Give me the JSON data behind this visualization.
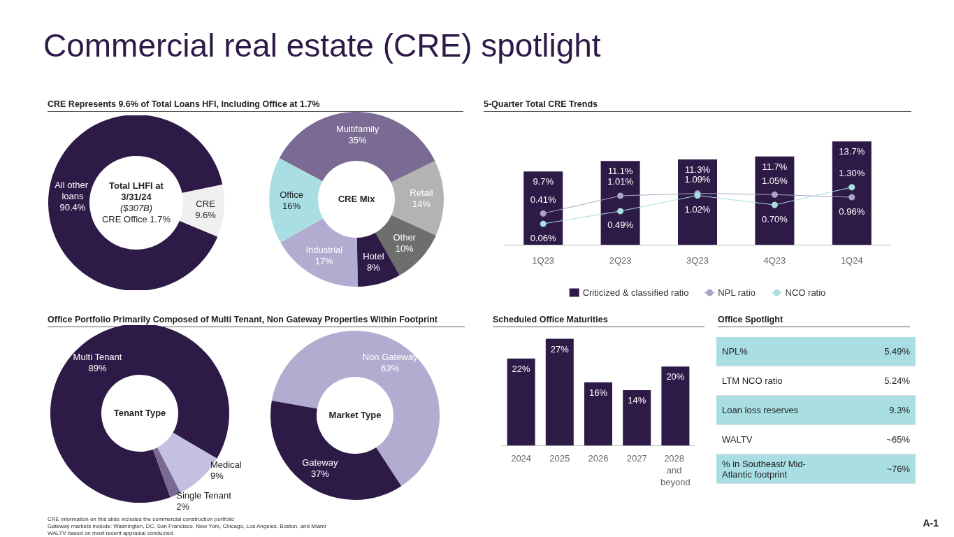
{
  "chart_data": [
    {
      "type": "donut",
      "title": "Commercial real estate (CRE) spotlight",
      "subtitle": "CRE Represents 9.6% of Total Loans HFI, Including Office at 1.7%",
      "categories": [
        "All other loans",
        "CRE"
      ],
      "values": [
        90.4,
        9.6
      ],
      "value_labels": [
        "90.4%",
        "9.6%"
      ],
      "colors": [
        "#2e1a47",
        "#f0f0f0"
      ],
      "annotations": [
        "Total LHFI at 3/31/24",
        "($307B)",
        "CRE Office 1.7%"
      ]
    },
    {
      "type": "donut",
      "categories": [
        "Multifamily",
        "Retail",
        "Other",
        "Hotel",
        "Industrial",
        "Office"
      ],
      "values": [
        35,
        14,
        10,
        8,
        17,
        16
      ],
      "value_labels": [
        "35%",
        "14%",
        "10%",
        "8%",
        "17%",
        "16%"
      ],
      "colors": [
        "#7b6a94",
        "#b3b3b3",
        "#6e6e6e",
        "#2e1a47",
        "#b1acd0",
        "#a9dfe3"
      ],
      "annotations": [
        "CRE Mix"
      ]
    },
    {
      "type": "bar",
      "title": "5-Quarter Total CRE Trends",
      "categories": [
        "1Q23",
        "2Q23",
        "3Q23",
        "4Q23",
        "1Q24"
      ],
      "tick_labels": "x",
      "legend": "bottom",
      "marker": "circle",
      "series": [
        {
          "name": "Criticized & classified ratio",
          "color": "#2e1a47",
          "values": [
            9.7,
            11.1,
            11.3,
            11.7,
            13.7
          ],
          "value_labels": [
            "9.7%",
            "11.1%",
            "11.3%",
            "11.7%",
            "13.7%"
          ]
        },
        {
          "name": "NPL ratio",
          "type": "line",
          "axis": "y2",
          "color": "#a9a6c4",
          "values": [
            0.41,
            1.01,
            1.09,
            1.05,
            0.96
          ],
          "value_labels": [
            "0.41%",
            "1.01%",
            "1.09%",
            "1.05%",
            "0.96%"
          ]
        },
        {
          "name": "NCO ratio",
          "type": "line",
          "axis": "y2",
          "color": "#a9dfe3",
          "values": [
            0.06,
            0.49,
            1.02,
            0.7,
            1.3
          ],
          "value_labels": [
            "0.06%",
            "0.49%",
            "1.02%",
            "0.70%",
            "1.30%"
          ]
        }
      ]
    },
    {
      "type": "donut",
      "title": "Office Portfolio Primarily Composed of Multi Tenant, Non Gateway Properties Within Footprint",
      "categories": [
        "Multi Tenant",
        "Medical",
        "Single Tenant"
      ],
      "values": [
        89,
        9,
        2
      ],
      "value_labels": [
        "89%",
        "9%",
        "2%"
      ],
      "colors": [
        "#2e1a47",
        "#c3c0e0",
        "#7b6a94"
      ],
      "annotations": [
        "Tenant Type"
      ]
    },
    {
      "type": "donut",
      "categories": [
        "Non Gateway",
        "Gateway"
      ],
      "values": [
        63,
        37
      ],
      "value_labels": [
        "63%",
        "37%"
      ],
      "colors": [
        "#b1acd0",
        "#2e1a47"
      ],
      "annotations": [
        "Market Type"
      ]
    },
    {
      "type": "bar",
      "title": "Scheduled Office Maturities",
      "categories": [
        "2024",
        "2025",
        "2026",
        "2027",
        "2028 and beyond"
      ],
      "values": [
        22,
        27,
        16,
        14,
        20
      ],
      "value_labels": [
        "22%",
        "27%",
        "16%",
        "14%",
        "20%"
      ],
      "color": "#2e1a47",
      "tick_labels": "x"
    },
    {
      "type": "other",
      "title": "Office Spotlight",
      "categories": [
        "NPL%",
        "LTM NCO ratio",
        "Loan loss reserves",
        "WALTV",
        "% in Southeast/ Mid-Atlantic footprint"
      ],
      "value_labels": [
        "5.49%",
        "5.24%",
        "9.3%",
        "~65%",
        "~76%"
      ],
      "annotations": [
        "CRE information on this slide includes the commercial construction portfolio",
        "Gateway markets include: Washington, DC, San Francisco, New York, Chicago, Los Angeles, Boston, and Miami",
        "WALTV based on most recent appraisal conducted",
        "A-1"
      ]
    }
  ]
}
